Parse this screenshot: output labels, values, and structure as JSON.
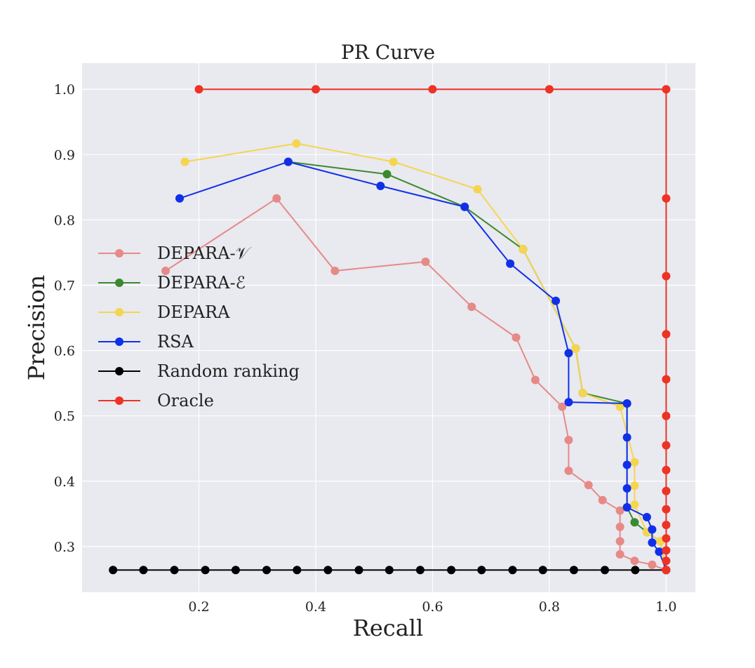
{
  "chart_data": {
    "type": "line",
    "title": "PR Curve",
    "xlabel": "Recall",
    "ylabel": "Precision",
    "xlim": [
      0.0,
      1.05
    ],
    "ylim": [
      0.23,
      1.04
    ],
    "x_ticks": [
      "0.2",
      "0.4",
      "0.6",
      "0.8",
      "1.0"
    ],
    "y_ticks": [
      "0.3",
      "0.4",
      "0.5",
      "0.6",
      "0.7",
      "0.8",
      "0.9",
      "1.0"
    ],
    "grid": true,
    "legend_position": "center-left",
    "series": [
      {
        "name": "DEPARA-𝒱",
        "color": "#e68a87",
        "points": [
          [
            0.143,
            0.722
          ],
          [
            0.333,
            0.833
          ],
          [
            0.433,
            0.722
          ],
          [
            0.588,
            0.736
          ],
          [
            0.667,
            0.667
          ],
          [
            0.743,
            0.62
          ],
          [
            0.776,
            0.555
          ],
          [
            0.822,
            0.514
          ],
          [
            0.833,
            0.463
          ],
          [
            0.833,
            0.416
          ],
          [
            0.867,
            0.394
          ],
          [
            0.891,
            0.371
          ],
          [
            0.921,
            0.355
          ],
          [
            0.921,
            0.33
          ],
          [
            0.921,
            0.308
          ],
          [
            0.921,
            0.288
          ],
          [
            0.946,
            0.278
          ],
          [
            0.976,
            0.272
          ],
          [
            1.0,
            0.264
          ]
        ]
      },
      {
        "name": "DEPARA-ℰ",
        "color": "#3b8a2e",
        "points": [
          [
            0.353,
            0.889
          ],
          [
            0.522,
            0.87
          ],
          [
            0.655,
            0.82
          ],
          [
            0.755,
            0.755
          ],
          [
            0.845,
            0.603
          ],
          [
            0.857,
            0.535
          ],
          [
            0.933,
            0.519
          ],
          [
            0.933,
            0.36
          ],
          [
            0.946,
            0.337
          ],
          [
            0.967,
            0.322
          ],
          [
            0.99,
            0.308
          ],
          [
            1.0,
            0.264
          ]
        ]
      },
      {
        "name": "DEPARA",
        "color": "#f5d54f",
        "points": [
          [
            0.176,
            0.889
          ],
          [
            0.367,
            0.917
          ],
          [
            0.533,
            0.889
          ],
          [
            0.677,
            0.847
          ],
          [
            0.755,
            0.755
          ],
          [
            0.845,
            0.603
          ],
          [
            0.857,
            0.535
          ],
          [
            0.921,
            0.514
          ],
          [
            0.946,
            0.429
          ],
          [
            0.946,
            0.393
          ],
          [
            0.946,
            0.364
          ],
          [
            0.967,
            0.322
          ],
          [
            0.99,
            0.308
          ],
          [
            1.0,
            0.264
          ]
        ]
      },
      {
        "name": "RSA",
        "color": "#1030e8",
        "points": [
          [
            0.167,
            0.833
          ],
          [
            0.353,
            0.889
          ],
          [
            0.511,
            0.852
          ],
          [
            0.655,
            0.82
          ],
          [
            0.733,
            0.733
          ],
          [
            0.811,
            0.676
          ],
          [
            0.833,
            0.596
          ],
          [
            0.833,
            0.521
          ],
          [
            0.933,
            0.519
          ],
          [
            0.933,
            0.467
          ],
          [
            0.933,
            0.425
          ],
          [
            0.933,
            0.389
          ],
          [
            0.933,
            0.36
          ],
          [
            0.967,
            0.345
          ],
          [
            0.976,
            0.326
          ],
          [
            0.976,
            0.306
          ],
          [
            0.988,
            0.292
          ],
          [
            1.0,
            0.264
          ]
        ]
      },
      {
        "name": "Random ranking",
        "color": "#000000",
        "points": [
          [
            0.053,
            0.264
          ],
          [
            0.105,
            0.264
          ],
          [
            0.158,
            0.264
          ],
          [
            0.211,
            0.264
          ],
          [
            0.263,
            0.264
          ],
          [
            0.316,
            0.264
          ],
          [
            0.368,
            0.264
          ],
          [
            0.421,
            0.264
          ],
          [
            0.474,
            0.264
          ],
          [
            0.526,
            0.264
          ],
          [
            0.579,
            0.264
          ],
          [
            0.632,
            0.264
          ],
          [
            0.684,
            0.264
          ],
          [
            0.737,
            0.264
          ],
          [
            0.789,
            0.264
          ],
          [
            0.842,
            0.264
          ],
          [
            0.895,
            0.264
          ],
          [
            0.947,
            0.264
          ],
          [
            1.0,
            0.264
          ]
        ]
      },
      {
        "name": "Oracle",
        "color": "#ee3224",
        "points": [
          [
            0.2,
            1.0
          ],
          [
            0.4,
            1.0
          ],
          [
            0.6,
            1.0
          ],
          [
            0.8,
            1.0
          ],
          [
            1.0,
            1.0
          ],
          [
            1.0,
            0.833
          ],
          [
            1.0,
            0.714
          ],
          [
            1.0,
            0.625
          ],
          [
            1.0,
            0.556
          ],
          [
            1.0,
            0.5
          ],
          [
            1.0,
            0.455
          ],
          [
            1.0,
            0.417
          ],
          [
            1.0,
            0.385
          ],
          [
            1.0,
            0.357
          ],
          [
            1.0,
            0.333
          ],
          [
            1.0,
            0.3125
          ],
          [
            1.0,
            0.294
          ],
          [
            1.0,
            0.278
          ],
          [
            1.0,
            0.264
          ]
        ]
      }
    ]
  }
}
